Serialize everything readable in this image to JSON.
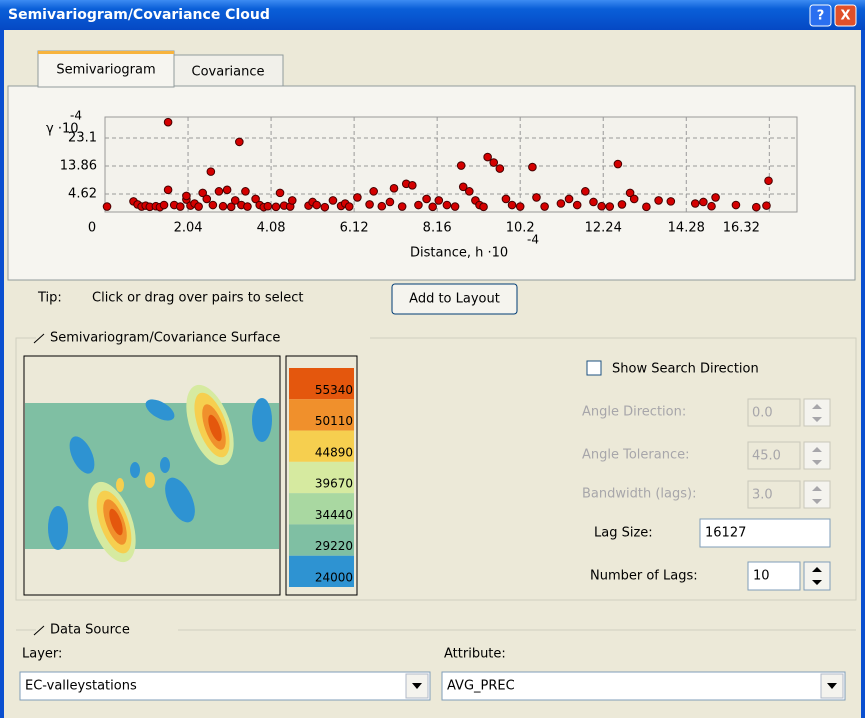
{
  "window": {
    "title": "Semivariogram/Covariance Cloud",
    "help": "?",
    "close": "X"
  },
  "tabs": [
    "Semivariogram",
    "Covariance"
  ],
  "chart_data": {
    "type": "scatter",
    "y_label": "γ ·10",
    "y_label_exp": "-4",
    "x_label": "Distance, h ·10",
    "x_label_exp": "-4",
    "color": "#d40000",
    "grid": true,
    "xlim": [
      0,
      17
    ],
    "ylim": [
      -1.3,
      30
    ],
    "xticks": [
      0,
      2.04,
      4.08,
      6.12,
      8.16,
      10.2,
      12.24,
      14.28,
      16.32
    ],
    "yticks": [
      4.62,
      13.86,
      23.1
    ],
    "x": [
      0.05,
      0.7,
      0.8,
      0.9,
      1.0,
      1.1,
      1.25,
      1.35,
      1.45,
      1.55,
      1.55,
      1.7,
      1.85,
      2.0,
      2.0,
      2.1,
      2.2,
      2.3,
      2.4,
      2.5,
      2.6,
      2.65,
      2.8,
      2.9,
      3.0,
      3.1,
      3.2,
      3.3,
      3.35,
      3.45,
      3.5,
      3.7,
      3.8,
      3.9,
      4.0,
      4.2,
      4.3,
      4.4,
      4.55,
      4.6,
      5.0,
      5.1,
      5.2,
      5.4,
      5.6,
      5.8,
      5.9,
      6.0,
      6.2,
      6.5,
      6.6,
      6.8,
      7.0,
      7.1,
      7.3,
      7.4,
      7.55,
      7.7,
      7.9,
      8.05,
      8.2,
      8.4,
      8.6,
      8.75,
      8.8,
      8.95,
      9.1,
      9.2,
      9.3,
      9.4,
      9.55,
      9.7,
      9.85,
      10.0,
      10.2,
      10.5,
      10.6,
      10.8,
      11.2,
      11.4,
      11.6,
      11.8,
      12.0,
      12.2,
      12.4,
      12.6,
      12.7,
      12.9,
      13.0,
      13.3,
      13.6,
      13.9,
      14.5,
      14.7,
      14.9,
      15.0,
      15.5,
      16.0,
      16.25,
      16.3
    ],
    "values": [
      0.5,
      2.2,
      1.2,
      0.5,
      0.8,
      0.4,
      0.6,
      0.3,
      1.0,
      6.0,
      28.3,
      1.0,
      0.5,
      2.8,
      4.0,
      0.8,
      1.5,
      0.5,
      5.0,
      3.0,
      12.0,
      1.0,
      5.5,
      0.6,
      6.0,
      0.4,
      2.5,
      21.8,
      1.0,
      5.5,
      0.5,
      3.0,
      1.0,
      0.3,
      0.6,
      0.4,
      5.0,
      0.8,
      0.5,
      2.5,
      0.8,
      2.0,
      1.0,
      0.3,
      2.5,
      0.7,
      1.5,
      0.5,
      3.5,
      1.2,
      5.5,
      0.6,
      2.0,
      6.5,
      0.5,
      8.0,
      7.5,
      1.0,
      3.0,
      0.4,
      2.5,
      1.0,
      0.5,
      14.0,
      7.0,
      5.5,
      2.5,
      1.0,
      0.4,
      16.8,
      15.0,
      13.0,
      3.0,
      1.0,
      0.5,
      13.5,
      3.5,
      0.5,
      1.5,
      3.0,
      1.0,
      5.5,
      2.0,
      0.6,
      0.5,
      14.5,
      1.2,
      5.0,
      3.0,
      0.4,
      2.5,
      2.2,
      1.5,
      2.0,
      0.6,
      3.5,
      1.0,
      0.3,
      0.8,
      9.0
    ]
  },
  "tip": {
    "label": "Tip:",
    "text": "Click or drag over pairs to select"
  },
  "add_button": "Add to Layout",
  "surface": {
    "title": "Semivariogram/Covariance Surface",
    "legend": [
      55340,
      50110,
      44890,
      39670,
      34440,
      29220,
      24000
    ],
    "colors": [
      "#e4570d",
      "#f0902c",
      "#f6cf4f",
      "#d6eaa0",
      "#a9d8a1",
      "#7fbfa3",
      "#2e93d2"
    ]
  },
  "search": {
    "show_direction": "Show Search Direction",
    "angle_direction": {
      "label": "Angle Direction:",
      "value": "0.0"
    },
    "angle_tolerance": {
      "label": "Angle Tolerance:",
      "value": "45.0"
    },
    "bandwidth": {
      "label": "Bandwidth (lags):",
      "value": "3.0"
    },
    "lag_size": {
      "label": "Lag Size:",
      "value": "16127"
    },
    "number_of_lags": {
      "label": "Number of Lags:",
      "value": "10"
    }
  },
  "data_source": {
    "title": "Data Source",
    "layer": {
      "label": "Layer:",
      "value": "EC-valleystations"
    },
    "attribute": {
      "label": "Attribute:",
      "value": "AVG_PREC"
    }
  }
}
